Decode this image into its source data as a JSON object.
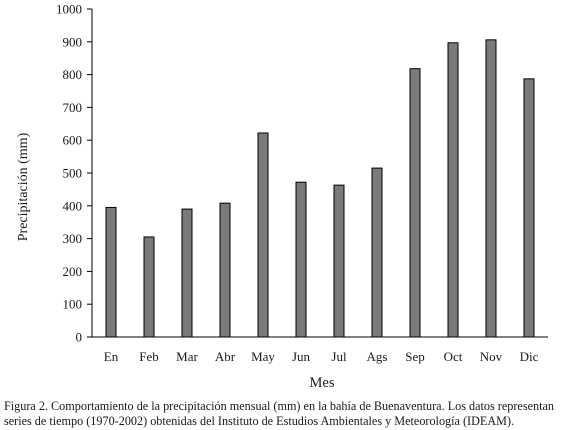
{
  "chart_data": {
    "type": "bar",
    "title": "",
    "xlabel": "Mes",
    "ylabel": "Precipitación (mm)",
    "ylim": [
      0,
      1000
    ],
    "yticks": [
      "0",
      "100",
      "200",
      "300",
      "400",
      "500",
      "600",
      "700",
      "800",
      "900",
      "1000"
    ],
    "categories": [
      "En",
      "Feb",
      "Mar",
      "Abr",
      "May",
      "Jun",
      "Jul",
      "Ags",
      "Sep",
      "Oct",
      "Nov",
      "Dic"
    ],
    "values": [
      395,
      305,
      390,
      408,
      622,
      472,
      463,
      515,
      818,
      897,
      906,
      787
    ],
    "grid": false,
    "legend": "none",
    "bar_color": "#7a7a7a",
    "bar_edge_color": "#000000"
  },
  "caption": {
    "line1": "Figura 2. Comportamiento de la precipitación mensual (mm) en la bahía de Buenaventura. Los datos representan",
    "line2": "series de tiempo (1970-2002) obtenidas del Instituto de Estudios Ambientales y Meteorología (IDEAM)."
  }
}
